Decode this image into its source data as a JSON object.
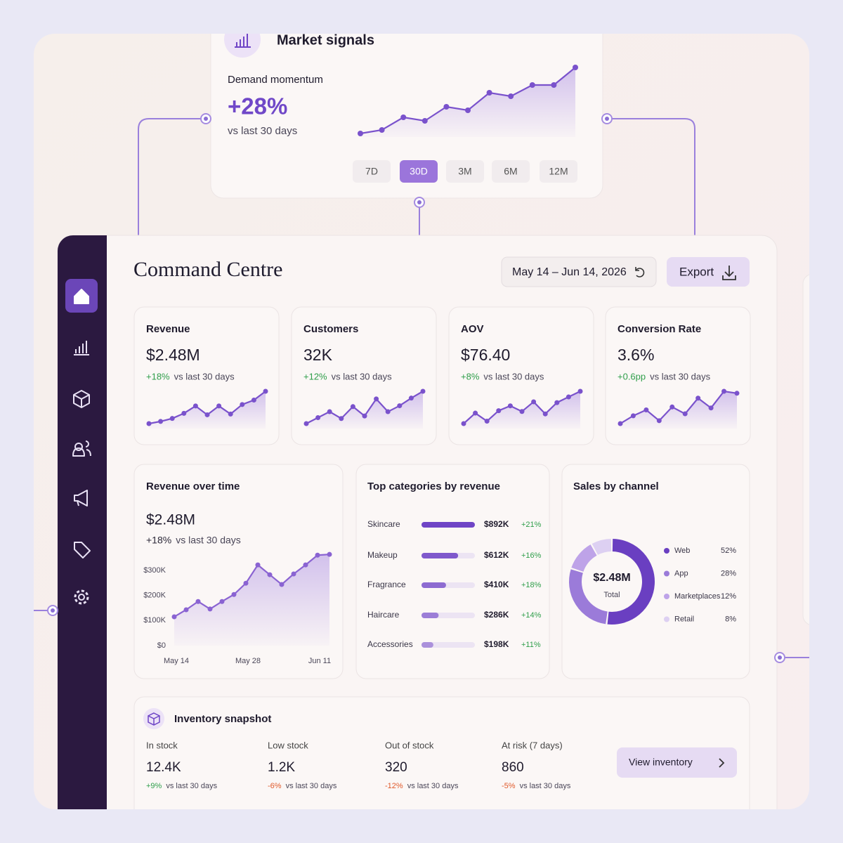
{
  "market_signals": {
    "title": "Market signals",
    "metric_label": "Demand momentum",
    "metric_value": "+28%",
    "comparison": "vs last 30 days",
    "trend": [
      10,
      15,
      33,
      28,
      48,
      43,
      68,
      63,
      79,
      79,
      104
    ],
    "ranges": [
      "7D",
      "30D",
      "3M",
      "6M",
      "12M"
    ],
    "active_range": "30D"
  },
  "header": {
    "title": "Command Centre",
    "date_range": "May 14 – Jun 14, 2026",
    "export_button": "Export"
  },
  "kpis": [
    {
      "label": "Revenue",
      "value": "$2.48M",
      "change": "+18%",
      "comparison": "vs last 30 days",
      "trend": [
        8,
        11,
        15,
        22,
        32,
        20,
        32,
        21,
        34,
        40,
        52
      ]
    },
    {
      "label": "Customers",
      "value": "32K",
      "change": "+12%",
      "comparison": "vs last 30 days",
      "trend": [
        6,
        13,
        20,
        12,
        26,
        15,
        35,
        20,
        27,
        36,
        44
      ]
    },
    {
      "label": "AOV",
      "value": "$76.40",
      "change": "+8%",
      "comparison": "vs last 30 days",
      "trend": [
        6,
        19,
        9,
        22,
        28,
        21,
        33,
        18,
        32,
        39,
        46
      ]
    },
    {
      "label": "Conversion Rate",
      "value": "3.6%",
      "change": "+0.6pp",
      "comparison": "vs last 30 days",
      "trend": [
        6,
        14,
        20,
        9,
        23,
        16,
        32,
        22,
        39,
        37
      ]
    }
  ],
  "chart_data": [
    {
      "type": "area",
      "title": "Revenue over time",
      "value": "$2.48M",
      "change": "+18%",
      "comparison": "vs last 30 days",
      "categories": [
        "May 14",
        null,
        null,
        null,
        null,
        null,
        "May 28",
        null,
        null,
        null,
        null,
        null,
        "Jun 11",
        null
      ],
      "values": [
        115,
        143,
        176,
        146,
        176,
        204,
        249,
        322,
        283,
        244,
        286,
        322,
        361,
        364
      ],
      "ylim": [
        0,
        380
      ],
      "yticks": [
        {
          "value": 0,
          "label": "$0"
        },
        {
          "value": 100,
          "label": "$100K"
        },
        {
          "value": 200,
          "label": "$200K"
        },
        {
          "value": 300,
          "label": "$300K"
        }
      ],
      "grid": false,
      "color": "#8a63d2"
    },
    {
      "type": "bar",
      "title": "Top categories by revenue",
      "categories": [
        "Skincare",
        "Makeup",
        "Fragrance",
        "Haircare",
        "Accessories"
      ],
      "values": [
        892,
        612,
        410,
        286,
        198
      ],
      "value_labels": [
        "$892K",
        "$612K",
        "$410K",
        "$286K",
        "$198K"
      ],
      "changes": [
        "+21%",
        "+16%",
        "+18%",
        "+14%",
        "+11%"
      ],
      "color": "#6f45c6"
    },
    {
      "type": "donut",
      "title": "Sales by channel",
      "center_value": "$2.48M",
      "center_label": "Total",
      "categories": [
        "Web",
        "App",
        "Marketplaces",
        "Retail"
      ],
      "values": [
        52,
        28,
        12,
        8
      ],
      "value_labels": [
        "52%",
        "28%",
        "12%",
        "8%"
      ],
      "colors": [
        "#6a3fc1",
        "#9b7bd9",
        "#bea3e8",
        "#ddd0f2"
      ]
    }
  ],
  "inventory": {
    "title": "Inventory snapshot",
    "items": [
      {
        "label": "In stock",
        "value": "12.4K",
        "change": "+9%",
        "comparison": "vs last 30 days"
      },
      {
        "label": "Low stock",
        "value": "1.2K",
        "change": "-6%",
        "comparison": "vs last 30 days"
      },
      {
        "label": "Out of stock",
        "value": "320",
        "change": "-12%",
        "comparison": "vs last 30 days"
      },
      {
        "label": "At risk (7 days)",
        "value": "860",
        "change": "-5%",
        "comparison": "vs last 30 days"
      }
    ],
    "button": "View inventory"
  }
}
